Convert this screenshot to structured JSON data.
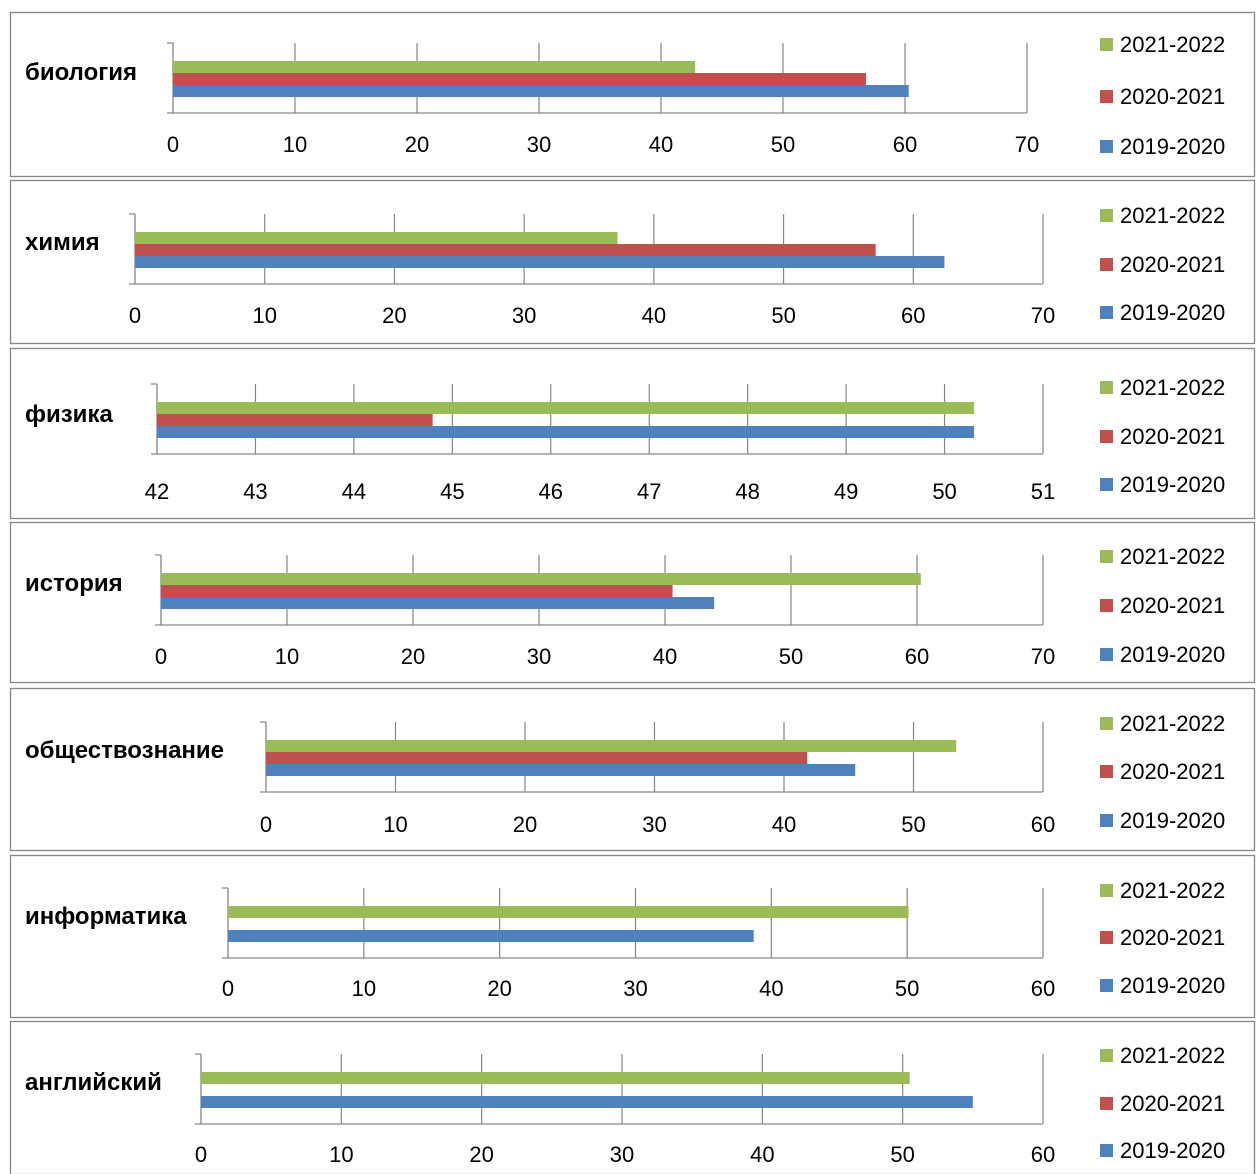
{
  "legend": [
    {
      "name": "2021-2022",
      "color": "#9BBB59"
    },
    {
      "name": "2020-2021",
      "color": "#C0504D"
    },
    {
      "name": "2019-2020",
      "color": "#4F81BD"
    }
  ],
  "chart_data": [
    {
      "type": "bar",
      "orientation": "horizontal",
      "category": "биология",
      "xlim": [
        0,
        70
      ],
      "ticks": [
        0,
        10,
        20,
        30,
        40,
        50,
        60,
        70
      ],
      "series": [
        {
          "name": "2021-2022",
          "value": 42.8
        },
        {
          "name": "2020-2021",
          "value": 56.8
        },
        {
          "name": "2019-2020",
          "value": 60.3
        }
      ]
    },
    {
      "type": "bar",
      "orientation": "horizontal",
      "category": "химия",
      "xlim": [
        0,
        70
      ],
      "ticks": [
        0,
        10,
        20,
        30,
        40,
        50,
        60,
        70
      ],
      "series": [
        {
          "name": "2021-2022",
          "value": 37.2
        },
        {
          "name": "2020-2021",
          "value": 57.1
        },
        {
          "name": "2019-2020",
          "value": 62.4
        }
      ]
    },
    {
      "type": "bar",
      "orientation": "horizontal",
      "category": "физика",
      "xlim": [
        42,
        51
      ],
      "ticks": [
        42,
        43,
        44,
        45,
        46,
        47,
        48,
        49,
        50,
        51
      ],
      "series": [
        {
          "name": "2021-2022",
          "value": 50.3
        },
        {
          "name": "2020-2021",
          "value": 44.8
        },
        {
          "name": "2019-2020",
          "value": 50.3
        }
      ]
    },
    {
      "type": "bar",
      "orientation": "horizontal",
      "category": "история",
      "xlim": [
        0,
        70
      ],
      "ticks": [
        0,
        10,
        20,
        30,
        40,
        50,
        60,
        70
      ],
      "series": [
        {
          "name": "2021-2022",
          "value": 60.3
        },
        {
          "name": "2020-2021",
          "value": 40.6
        },
        {
          "name": "2019-2020",
          "value": 43.9
        }
      ]
    },
    {
      "type": "bar",
      "orientation": "horizontal",
      "category": "обществознание",
      "xlim": [
        0,
        60
      ],
      "ticks": [
        0,
        10,
        20,
        30,
        40,
        50,
        60
      ],
      "series": [
        {
          "name": "2021-2022",
          "value": 53.3
        },
        {
          "name": "2020-2021",
          "value": 41.8
        },
        {
          "name": "2019-2020",
          "value": 45.5
        }
      ]
    },
    {
      "type": "bar",
      "orientation": "horizontal",
      "category": "информатика",
      "xlim": [
        0,
        60
      ],
      "ticks": [
        0,
        10,
        20,
        30,
        40,
        50,
        60
      ],
      "series": [
        {
          "name": "2021-2022",
          "value": 50.1
        },
        {
          "name": "2020-2021",
          "value": null
        },
        {
          "name": "2019-2020",
          "value": 38.7
        }
      ]
    },
    {
      "type": "bar",
      "orientation": "horizontal",
      "category": "английский",
      "xlim": [
        0,
        60
      ],
      "ticks": [
        0,
        10,
        20,
        30,
        40,
        50,
        60
      ],
      "series": [
        {
          "name": "2021-2022",
          "value": 50.5
        },
        {
          "name": "2020-2021",
          "value": null
        },
        {
          "name": "2019-2020",
          "value": 55.0
        }
      ]
    }
  ]
}
